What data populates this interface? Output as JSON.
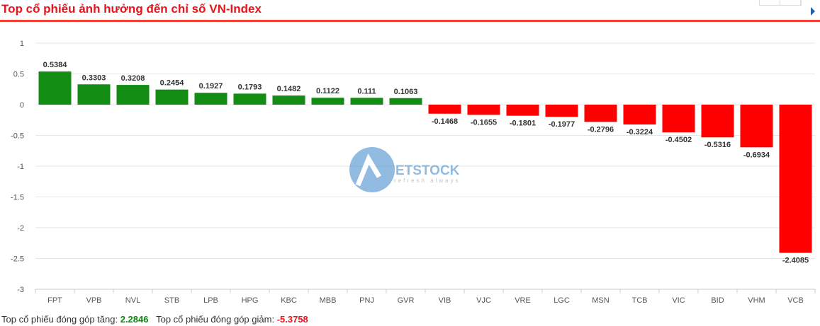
{
  "header": {
    "title": "Top cổ phiếu ảnh hưởng đến chỉ số VN-Index"
  },
  "watermark": {
    "text": "VIETSTOCK",
    "tagline": "refresh always"
  },
  "colors": {
    "positive": "#128c12",
    "negative": "#ff0000",
    "title": "#e8141b"
  },
  "chart_data": {
    "type": "bar",
    "title": "Top cổ phiếu ảnh hưởng đến chỉ số VN-Index",
    "ylim": [
      -3,
      1
    ],
    "grid": true,
    "yticks": [
      "1",
      "0.5",
      "0",
      "-0.5",
      "-1",
      "-1.5",
      "-2",
      "-2.5",
      "-3"
    ],
    "categories": [
      "FPT",
      "VPB",
      "NVL",
      "STB",
      "LPB",
      "HPG",
      "KBC",
      "MBB",
      "PNJ",
      "GVR",
      "VIB",
      "VJC",
      "VRE",
      "LGC",
      "MSN",
      "TCB",
      "VIC",
      "BID",
      "VHM",
      "VCB"
    ],
    "values": [
      0.5384,
      0.3303,
      0.3208,
      0.2454,
      0.1927,
      0.1793,
      0.1482,
      0.1122,
      0.111,
      0.1063,
      -0.1468,
      -0.1655,
      -0.1801,
      -0.1977,
      -0.2796,
      -0.3224,
      -0.4502,
      -0.5316,
      -0.6934,
      -2.4085
    ],
    "labels": [
      "0.5384",
      "0.3303",
      "0.3208",
      "0.2454",
      "0.1927",
      "0.1793",
      "0.1482",
      "0.1122",
      "0.111",
      "0.1063",
      "-0.1468",
      "-0.1655",
      "-0.1801",
      "-0.1977",
      "-0.2796",
      "-0.3224",
      "-0.4502",
      "-0.5316",
      "-0.6934",
      "-2.4085"
    ]
  },
  "footer": {
    "up_label": "Top cổ phiếu đóng góp tăng:",
    "up_value": "2.2846",
    "down_label": "Top cổ phiếu đóng góp giảm:",
    "down_value": "-5.3758"
  }
}
